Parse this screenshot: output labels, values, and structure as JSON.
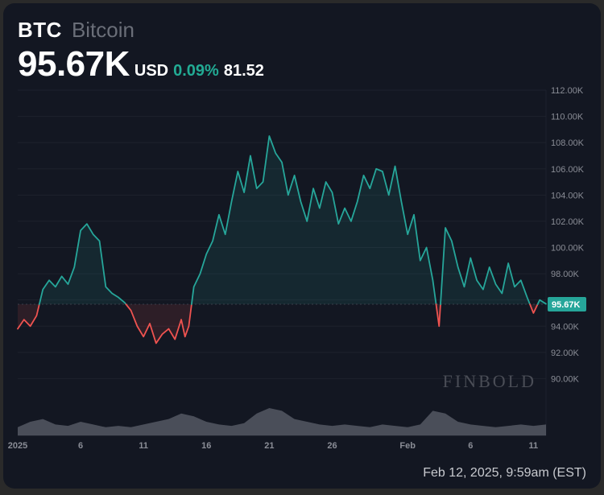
{
  "header": {
    "symbol": "BTC",
    "name": "Bitcoin",
    "price": "95.67K",
    "currency": "USD",
    "change_pct": "0.09%",
    "change_abs": "81.52",
    "change_color": "#22ab94"
  },
  "timestamp": "Feb 12, 2025, 9:59am (EST)",
  "chart": {
    "type": "line",
    "background_color": "#131722",
    "grid_color": "#1e222d",
    "above_color": "#26a69a",
    "below_color": "#ef5350",
    "volume_color": "#787b86",
    "baseline": 95.67,
    "yaxis": {
      "min": 88,
      "max": 112,
      "ticks": [
        90.0,
        92.0,
        94.0,
        96.0,
        98.0,
        100.0,
        102.0,
        104.0,
        106.0,
        108.0,
        110.0,
        112.0
      ],
      "tick_labels": [
        "90.00K",
        "92.00K",
        "94.00K",
        "96.00K",
        "98.00K",
        "100.00K",
        "102.00K",
        "104.00K",
        "106.00K",
        "108.00K",
        "110.00K",
        "112.00K"
      ],
      "label_fontsize": 11,
      "label_color": "#8a8d96"
    },
    "xaxis": {
      "ticks": [
        0,
        5,
        10,
        15,
        20,
        25,
        31,
        36,
        41
      ],
      "tick_labels": [
        "2025",
        "6",
        "11",
        "16",
        "21",
        "26",
        "Feb",
        "6",
        "11"
      ],
      "label_fontsize": 11,
      "label_color": "#8a8d96"
    },
    "price_tag": {
      "value": "95.67K",
      "bg": "#26a69a",
      "text_color": "#ffffff"
    },
    "watermark": {
      "text": "FINBOLD",
      "color": "#4a4d56",
      "fontsize": 22
    },
    "x_range": [
      0,
      42
    ],
    "price_series": [
      [
        0,
        93.8
      ],
      [
        0.5,
        94.5
      ],
      [
        1,
        94.0
      ],
      [
        1.5,
        94.8
      ],
      [
        2,
        96.8
      ],
      [
        2.5,
        97.5
      ],
      [
        3,
        97.0
      ],
      [
        3.5,
        97.8
      ],
      [
        4,
        97.2
      ],
      [
        4.5,
        98.5
      ],
      [
        5,
        101.3
      ],
      [
        5.5,
        101.8
      ],
      [
        6,
        101.0
      ],
      [
        6.5,
        100.5
      ],
      [
        7,
        97.0
      ],
      [
        7.5,
        96.5
      ],
      [
        8,
        96.2
      ],
      [
        8.5,
        95.8
      ],
      [
        9,
        95.2
      ],
      [
        9.5,
        94.0
      ],
      [
        10,
        93.2
      ],
      [
        10.5,
        94.2
      ],
      [
        11,
        92.7
      ],
      [
        11.5,
        93.4
      ],
      [
        12,
        93.8
      ],
      [
        12.5,
        93.0
      ],
      [
        13,
        94.5
      ],
      [
        13.3,
        93.2
      ],
      [
        13.6,
        94.0
      ],
      [
        14,
        97.0
      ],
      [
        14.5,
        98.0
      ],
      [
        15,
        99.5
      ],
      [
        15.5,
        100.5
      ],
      [
        16,
        102.5
      ],
      [
        16.5,
        101.0
      ],
      [
        17,
        103.5
      ],
      [
        17.5,
        105.8
      ],
      [
        18,
        104.2
      ],
      [
        18.5,
        107.0
      ],
      [
        19,
        104.5
      ],
      [
        19.5,
        105.0
      ],
      [
        20,
        108.5
      ],
      [
        20.5,
        107.2
      ],
      [
        21,
        106.5
      ],
      [
        21.5,
        104.0
      ],
      [
        22,
        105.5
      ],
      [
        22.5,
        103.5
      ],
      [
        23,
        102.0
      ],
      [
        23.5,
        104.5
      ],
      [
        24,
        103.0
      ],
      [
        24.5,
        105.0
      ],
      [
        25,
        104.2
      ],
      [
        25.5,
        101.8
      ],
      [
        26,
        103.0
      ],
      [
        26.5,
        102.0
      ],
      [
        27,
        103.5
      ],
      [
        27.5,
        105.5
      ],
      [
        28,
        104.5
      ],
      [
        28.5,
        106.0
      ],
      [
        29,
        105.8
      ],
      [
        29.5,
        104.0
      ],
      [
        30,
        106.2
      ],
      [
        30.5,
        103.5
      ],
      [
        31,
        101.0
      ],
      [
        31.5,
        102.5
      ],
      [
        32,
        99.0
      ],
      [
        32.5,
        100.0
      ],
      [
        33,
        97.5
      ],
      [
        33.5,
        94.0
      ],
      [
        34,
        101.5
      ],
      [
        34.5,
        100.5
      ],
      [
        35,
        98.5
      ],
      [
        35.5,
        97.0
      ],
      [
        36,
        99.2
      ],
      [
        36.5,
        97.5
      ],
      [
        37,
        96.8
      ],
      [
        37.5,
        98.5
      ],
      [
        38,
        97.2
      ],
      [
        38.5,
        96.5
      ],
      [
        39,
        98.8
      ],
      [
        39.5,
        97.0
      ],
      [
        40,
        97.5
      ],
      [
        40.5,
        96.2
      ],
      [
        41,
        95.0
      ],
      [
        41.5,
        96.0
      ],
      [
        42,
        95.7
      ]
    ],
    "volume_series": [
      [
        0,
        0.3
      ],
      [
        1,
        0.5
      ],
      [
        2,
        0.6
      ],
      [
        3,
        0.4
      ],
      [
        4,
        0.35
      ],
      [
        5,
        0.5
      ],
      [
        6,
        0.4
      ],
      [
        7,
        0.3
      ],
      [
        8,
        0.35
      ],
      [
        9,
        0.3
      ],
      [
        10,
        0.4
      ],
      [
        11,
        0.5
      ],
      [
        12,
        0.6
      ],
      [
        13,
        0.8
      ],
      [
        14,
        0.7
      ],
      [
        15,
        0.5
      ],
      [
        16,
        0.4
      ],
      [
        17,
        0.35
      ],
      [
        18,
        0.45
      ],
      [
        19,
        0.8
      ],
      [
        20,
        1.0
      ],
      [
        21,
        0.9
      ],
      [
        22,
        0.6
      ],
      [
        23,
        0.5
      ],
      [
        24,
        0.4
      ],
      [
        25,
        0.35
      ],
      [
        26,
        0.4
      ],
      [
        27,
        0.35
      ],
      [
        28,
        0.3
      ],
      [
        29,
        0.4
      ],
      [
        30,
        0.35
      ],
      [
        31,
        0.3
      ],
      [
        32,
        0.4
      ],
      [
        33,
        0.9
      ],
      [
        34,
        0.8
      ],
      [
        35,
        0.5
      ],
      [
        36,
        0.4
      ],
      [
        37,
        0.35
      ],
      [
        38,
        0.3
      ],
      [
        39,
        0.35
      ],
      [
        40,
        0.4
      ],
      [
        41,
        0.35
      ],
      [
        42,
        0.4
      ]
    ],
    "volume_max": 1.0,
    "line_width": 1.8
  }
}
